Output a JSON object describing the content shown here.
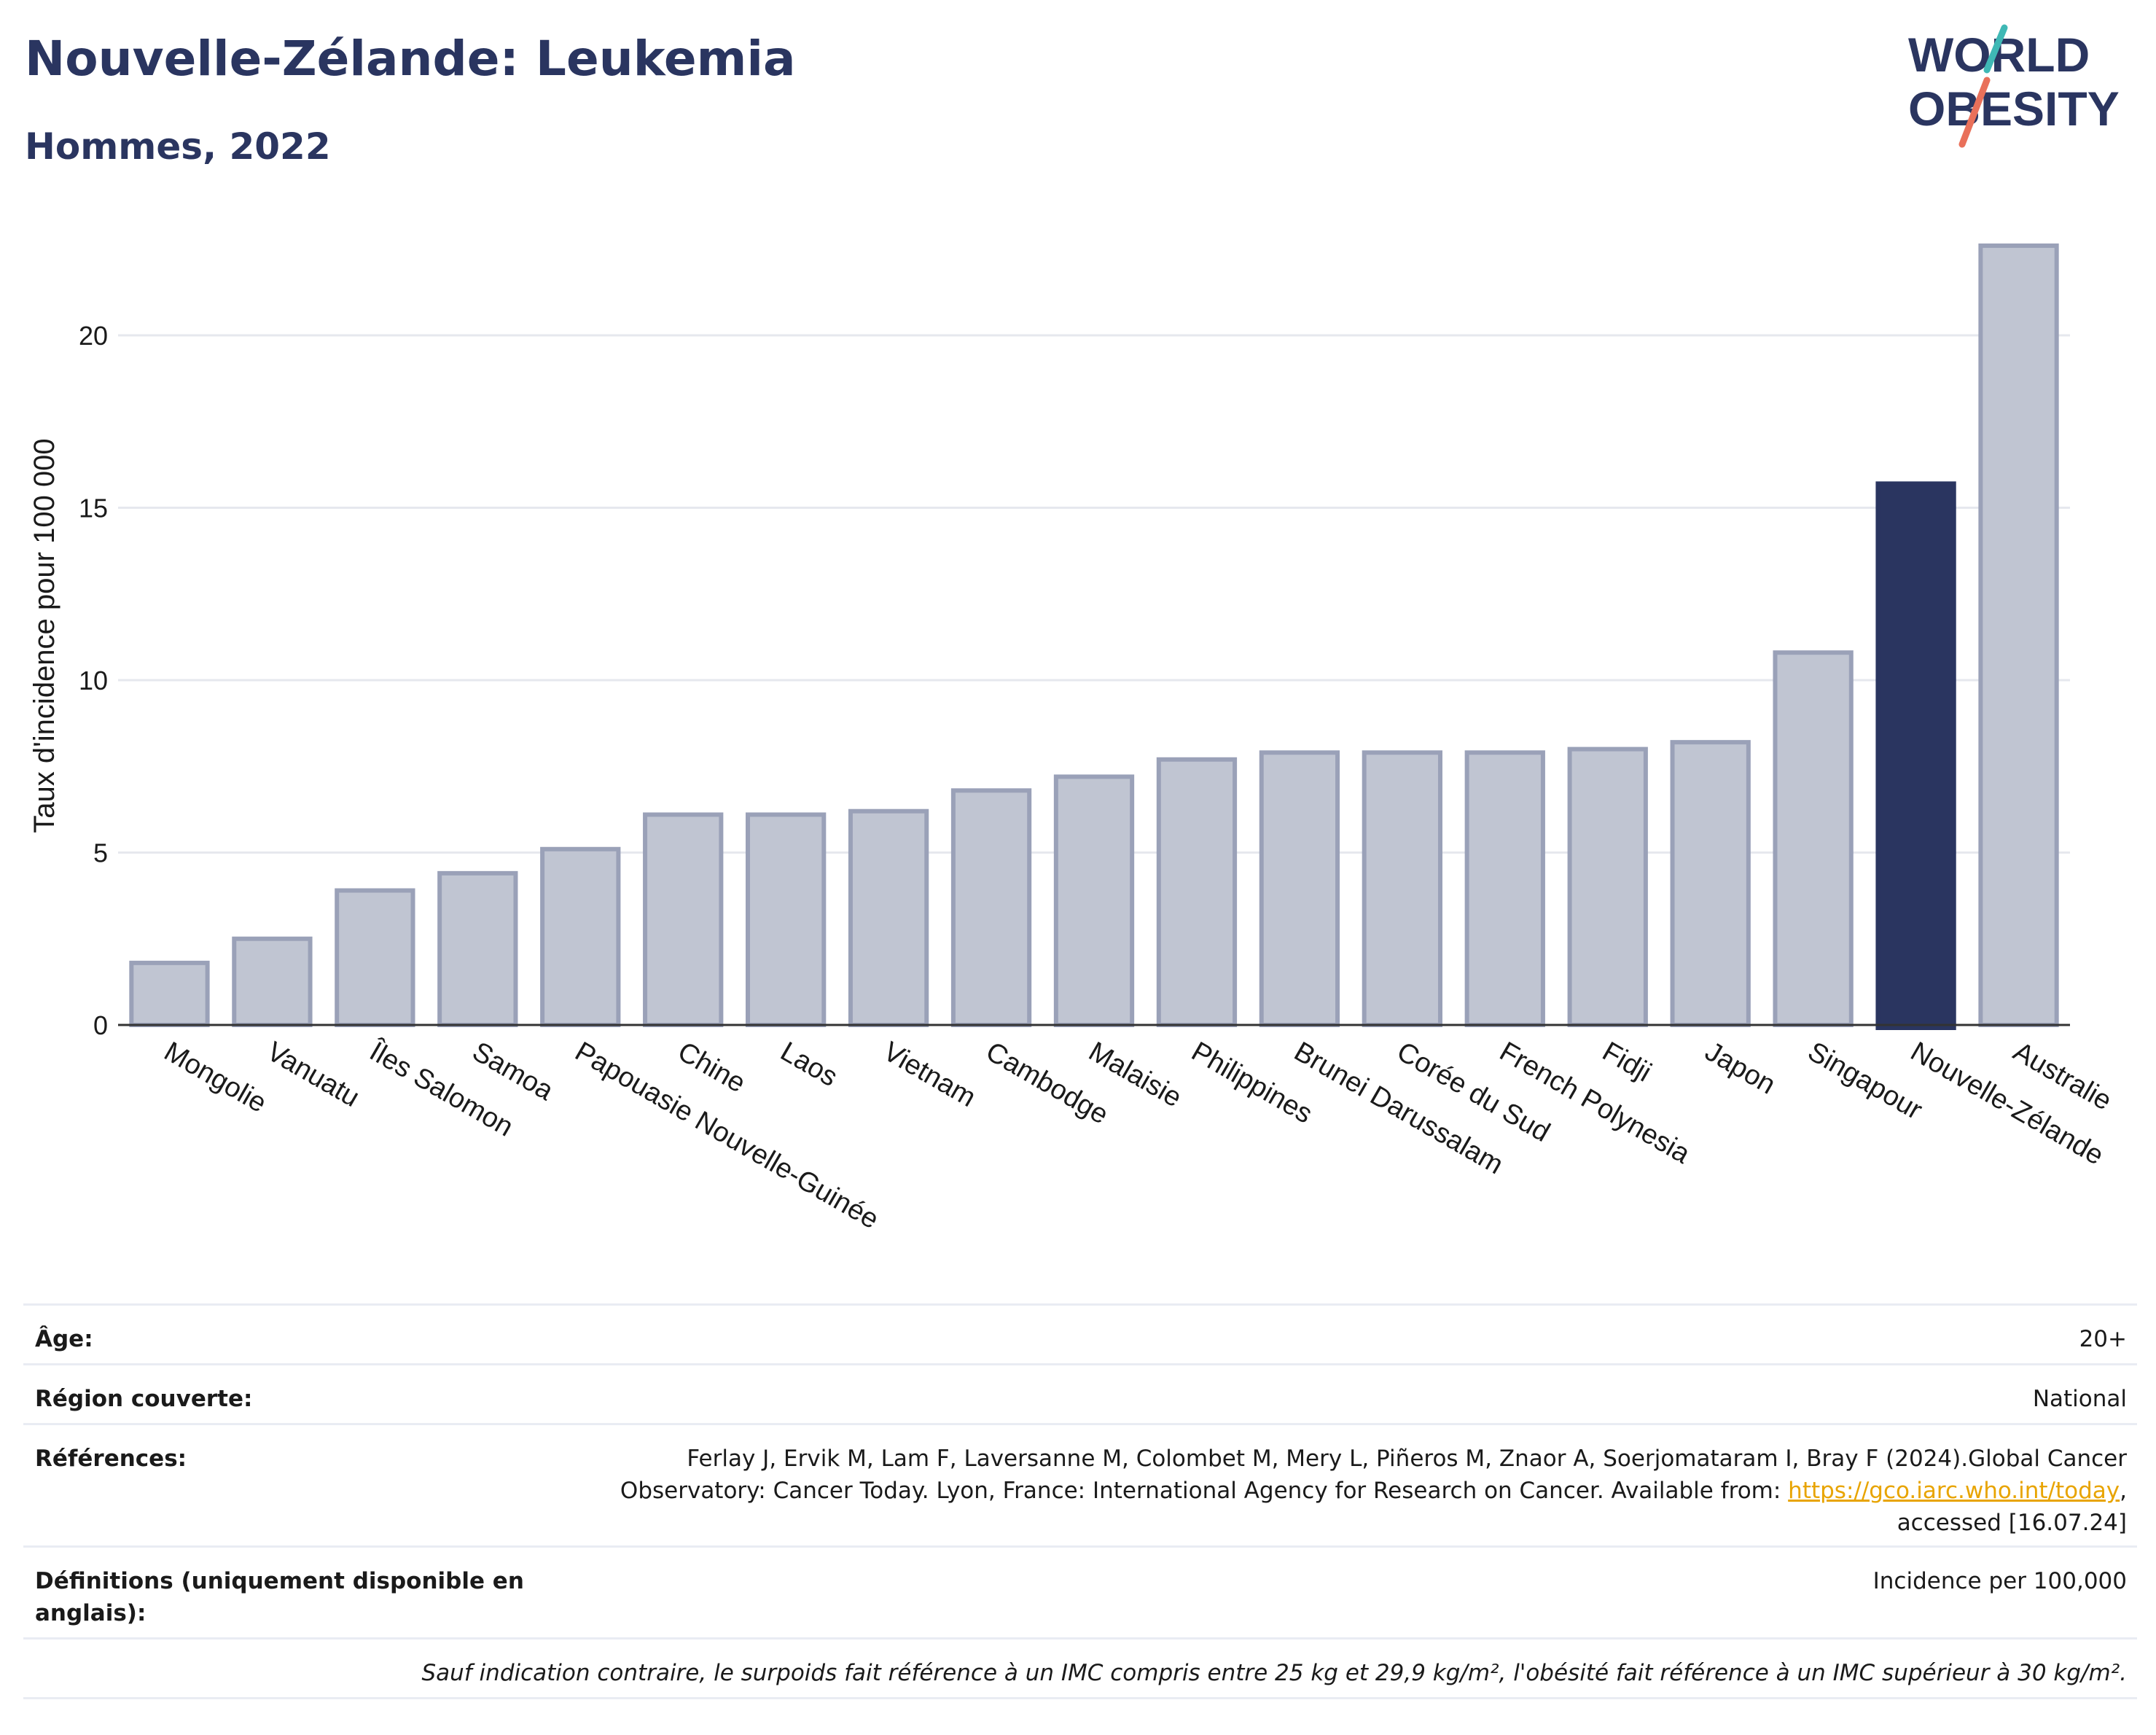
{
  "header": {
    "title": "Nouvelle-Zélande: Leukemia",
    "subtitle": "Hommes, 2022"
  },
  "logo": {
    "line1": "WORLD",
    "line2": "OBESITY"
  },
  "chart_data": {
    "type": "bar",
    "ylabel": "Taux d'incidence pour 100 000",
    "xlabel": "",
    "ylim": [
      0,
      23
    ],
    "yticks": [
      0,
      5,
      10,
      15,
      20
    ],
    "grid": true,
    "categories": [
      "Mongolie",
      "Vanuatu",
      "Îles Salomon",
      "Samoa",
      "Papouasie Nouvelle-Guinée",
      "Chine",
      "Laos",
      "Vietnam",
      "Cambodge",
      "Malaisie",
      "Philippines",
      "Brunei Darussalam",
      "Corée du Sud",
      "French Polynesia",
      "Fidji",
      "Japon",
      "Singapour",
      "Nouvelle-Zélande",
      "Australie"
    ],
    "values": [
      1.8,
      2.5,
      3.9,
      4.4,
      5.1,
      6.1,
      6.1,
      6.2,
      6.8,
      7.2,
      7.7,
      7.9,
      7.9,
      7.9,
      8.0,
      8.2,
      10.8,
      15.7,
      22.6
    ],
    "highlight": "Nouvelle-Zélande",
    "colors": {
      "bar": "#c0c5d2",
      "bar_border": "#9aa1b8",
      "highlight": "#2a3560",
      "grid": "#e6e8ee",
      "axis": "#333333"
    }
  },
  "meta": {
    "age_label": "Âge:",
    "age_value": "20+",
    "region_label": "Région couverte:",
    "region_value": "National",
    "ref_label": "Références:",
    "ref_text": "Ferlay J, Ervik M, Lam F, Laversanne M, Colombet M, Mery L, Piñeros M, Znaor A, Soerjomataram I, Bray F (2024).Global Cancer Observatory: Cancer Today. Lyon, France: International Agency for Research on Cancer. Available from:",
    "ref_link": "https://gco.iarc.who.int/today",
    "ref_tail": ", accessed [16.07.24]",
    "def_label": "Définitions (uniquement disponible en anglais):",
    "def_value": "Incidence per 100,000",
    "note": "Sauf indication contraire, le surpoids fait référence à un IMC compris entre 25 kg et 29,9 kg/m², l'obésité fait référence à un IMC supérieur à 30 kg/m²."
  }
}
